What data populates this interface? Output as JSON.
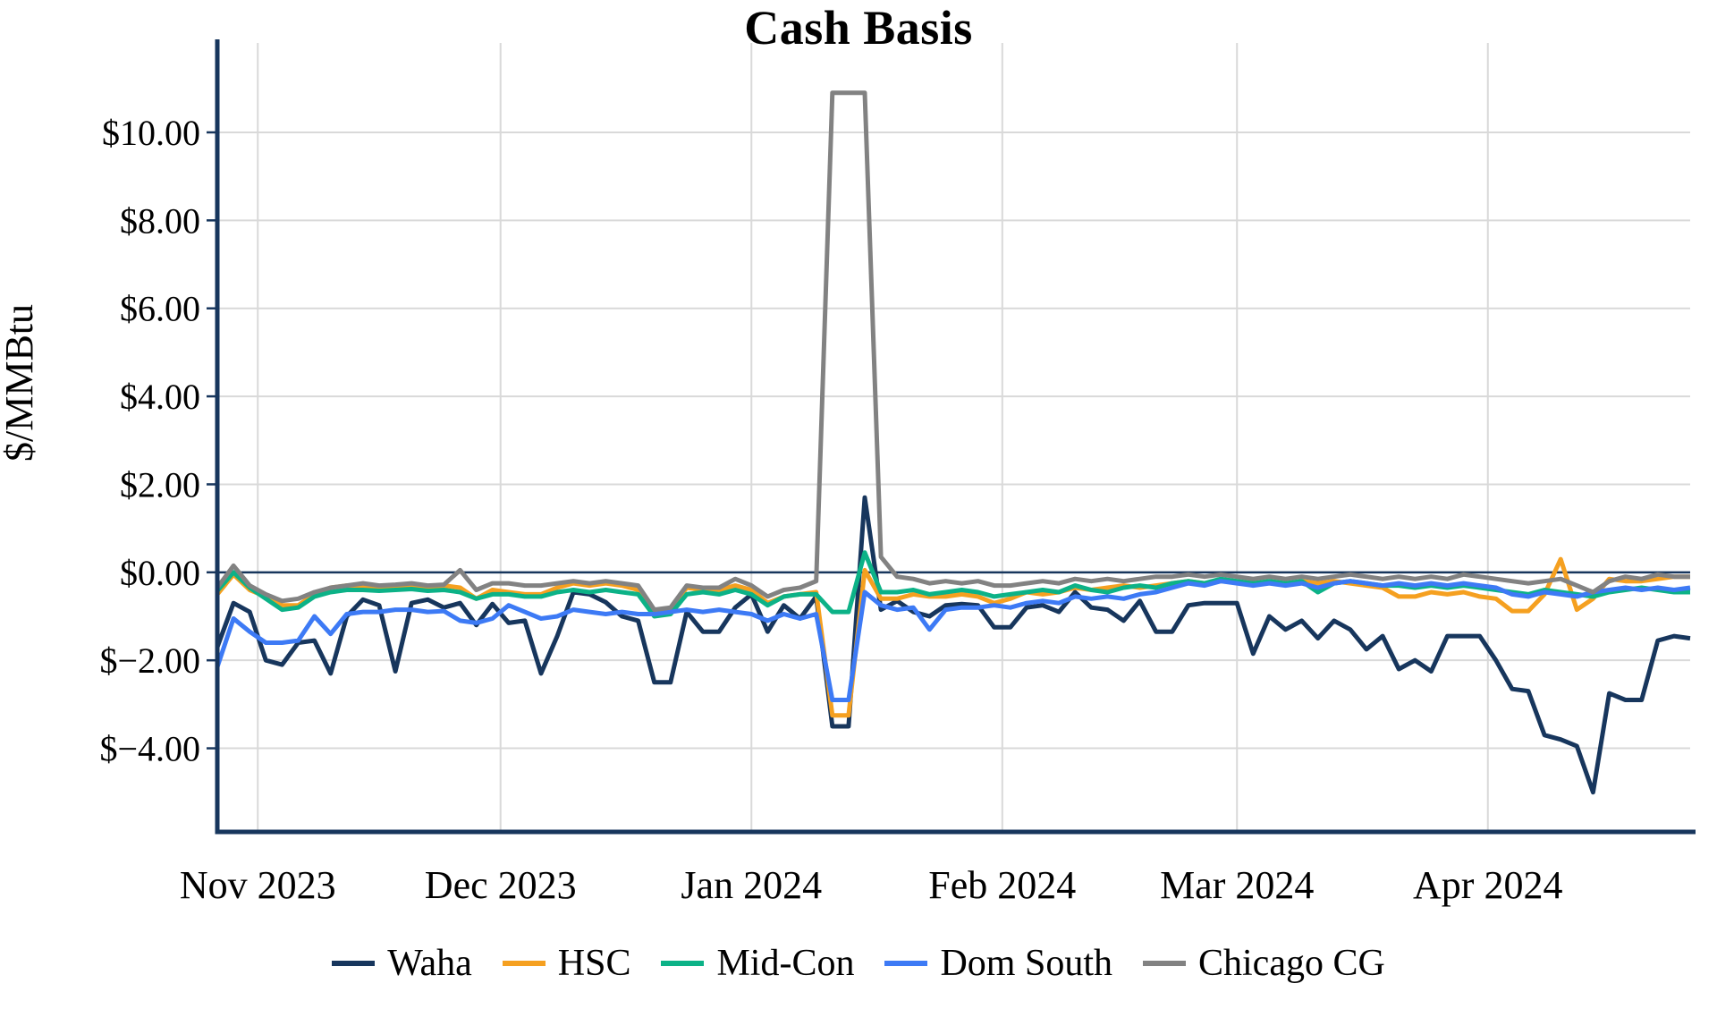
{
  "chart_data": {
    "type": "line",
    "title": "Cash Basis",
    "ylabel": "$/MMBtu",
    "legend_position": "bottom",
    "grid": true,
    "background": "#ffffff",
    "ylim": [
      -5.9,
      11.85
    ],
    "x_unit": "day offset from first plotted date (2-day sampling of daily series)",
    "x": [
      0,
      2,
      4,
      6,
      8,
      10,
      12,
      14,
      16,
      18,
      20,
      22,
      24,
      26,
      28,
      30,
      32,
      34,
      36,
      38,
      40,
      42,
      44,
      46,
      48,
      50,
      52,
      54,
      56,
      58,
      60,
      62,
      64,
      66,
      68,
      70,
      72,
      74,
      76,
      78,
      80,
      82,
      84,
      86,
      88,
      90,
      92,
      94,
      96,
      98,
      100,
      102,
      104,
      106,
      108,
      110,
      112,
      114,
      116,
      118,
      120,
      122,
      124,
      126,
      128,
      130,
      132,
      134,
      136,
      138,
      140,
      142,
      144,
      146,
      148,
      150,
      152,
      154,
      156,
      158,
      160,
      162,
      164,
      166,
      168,
      170,
      172,
      174,
      176,
      178,
      180,
      182
    ],
    "x_ticks": [
      {
        "day": 5,
        "label": "Nov 2023"
      },
      {
        "day": 35,
        "label": "Dec 2023"
      },
      {
        "day": 66,
        "label": "Jan 2024"
      },
      {
        "day": 97,
        "label": "Feb 2024"
      },
      {
        "day": 126,
        "label": "Mar 2024"
      },
      {
        "day": 157,
        "label": "Apr 2024"
      }
    ],
    "y_ticks": [
      {
        "value": 10,
        "label": "$10.00"
      },
      {
        "value": 8,
        "label": "$8.00"
      },
      {
        "value": 6,
        "label": "$6.00"
      },
      {
        "value": 4,
        "label": "$4.00"
      },
      {
        "value": 2,
        "label": "$2.00"
      },
      {
        "value": 0,
        "label": "$0.00"
      },
      {
        "value": -2,
        "label": "$−2.00"
      },
      {
        "value": -4,
        "label": "$−4.00"
      }
    ],
    "series": [
      {
        "name": "Waha",
        "color": "#17365d",
        "values": [
          -1.7,
          -0.7,
          -0.9,
          -2.0,
          -2.1,
          -1.6,
          -1.55,
          -2.3,
          -1.0,
          -0.62,
          -0.75,
          -2.25,
          -0.7,
          -0.62,
          -0.8,
          -0.7,
          -1.2,
          -0.72,
          -1.15,
          -1.1,
          -2.3,
          -1.45,
          -0.45,
          -0.5,
          -0.68,
          -1.0,
          -1.1,
          -2.5,
          -2.5,
          -0.9,
          -1.35,
          -1.35,
          -0.8,
          -0.5,
          -1.35,
          -0.75,
          -1.05,
          -0.55,
          -3.5,
          -3.5,
          1.7,
          -0.85,
          -0.65,
          -0.9,
          -1.0,
          -0.75,
          -0.72,
          -0.75,
          -1.25,
          -1.25,
          -0.8,
          -0.75,
          -0.9,
          -0.45,
          -0.8,
          -0.85,
          -1.1,
          -0.65,
          -1.35,
          -1.35,
          -0.75,
          -0.7,
          -0.7,
          -0.7,
          -1.85,
          -1.0,
          -1.3,
          -1.1,
          -1.5,
          -1.1,
          -1.3,
          -1.75,
          -1.45,
          -2.2,
          -2.0,
          -2.25,
          -1.45,
          -1.45,
          -1.45,
          -2.0,
          -2.65,
          -2.7,
          -3.7,
          -3.8,
          -3.95,
          -5.0,
          -2.75,
          -2.9,
          -2.9,
          -1.55,
          -1.45,
          -1.5
        ]
      },
      {
        "name": "HSC",
        "color": "#f5a020",
        "values": [
          -0.5,
          -0.05,
          -0.4,
          -0.55,
          -0.75,
          -0.75,
          -0.5,
          -0.35,
          -0.3,
          -0.3,
          -0.35,
          -0.3,
          -0.3,
          -0.35,
          -0.3,
          -0.35,
          -0.6,
          -0.4,
          -0.45,
          -0.5,
          -0.5,
          -0.35,
          -0.25,
          -0.3,
          -0.25,
          -0.3,
          -0.4,
          -0.9,
          -0.85,
          -0.35,
          -0.4,
          -0.4,
          -0.3,
          -0.4,
          -0.7,
          -0.55,
          -0.5,
          -0.45,
          -3.25,
          -3.25,
          0.05,
          -0.6,
          -0.6,
          -0.5,
          -0.55,
          -0.55,
          -0.5,
          -0.55,
          -0.7,
          -0.6,
          -0.45,
          -0.5,
          -0.45,
          -0.35,
          -0.4,
          -0.35,
          -0.3,
          -0.35,
          -0.3,
          -0.25,
          -0.2,
          -0.25,
          -0.2,
          -0.2,
          -0.25,
          -0.2,
          -0.25,
          -0.2,
          -0.25,
          -0.2,
          -0.25,
          -0.3,
          -0.35,
          -0.55,
          -0.55,
          -0.45,
          -0.5,
          -0.45,
          -0.55,
          -0.6,
          -0.88,
          -0.88,
          -0.5,
          0.3,
          -0.85,
          -0.6,
          -0.15,
          -0.2,
          -0.2,
          -0.15,
          -0.1,
          -0.1
        ]
      },
      {
        "name": "Mid-Con",
        "color": "#0cb287",
        "values": [
          -0.42,
          0.0,
          -0.35,
          -0.6,
          -0.85,
          -0.8,
          -0.55,
          -0.45,
          -0.4,
          -0.4,
          -0.42,
          -0.4,
          -0.38,
          -0.42,
          -0.4,
          -0.45,
          -0.6,
          -0.5,
          -0.5,
          -0.55,
          -0.55,
          -0.45,
          -0.4,
          -0.45,
          -0.4,
          -0.45,
          -0.5,
          -1.0,
          -0.95,
          -0.5,
          -0.45,
          -0.5,
          -0.4,
          -0.5,
          -0.75,
          -0.55,
          -0.5,
          -0.5,
          -0.9,
          -0.9,
          0.45,
          -0.45,
          -0.45,
          -0.4,
          -0.5,
          -0.45,
          -0.4,
          -0.45,
          -0.55,
          -0.5,
          -0.45,
          -0.4,
          -0.45,
          -0.3,
          -0.4,
          -0.45,
          -0.35,
          -0.3,
          -0.35,
          -0.25,
          -0.2,
          -0.25,
          -0.15,
          -0.2,
          -0.25,
          -0.2,
          -0.25,
          -0.2,
          -0.45,
          -0.25,
          -0.2,
          -0.25,
          -0.3,
          -0.3,
          -0.35,
          -0.3,
          -0.35,
          -0.3,
          -0.35,
          -0.4,
          -0.45,
          -0.5,
          -0.4,
          -0.45,
          -0.5,
          -0.55,
          -0.45,
          -0.4,
          -0.35,
          -0.4,
          -0.45,
          -0.45
        ]
      },
      {
        "name": "Dom South",
        "color": "#3d7af5",
        "values": [
          -2.15,
          -1.05,
          -1.35,
          -1.6,
          -1.6,
          -1.55,
          -1.0,
          -1.4,
          -0.95,
          -0.9,
          -0.9,
          -0.85,
          -0.85,
          -0.9,
          -0.88,
          -1.1,
          -1.15,
          -1.05,
          -0.75,
          -0.9,
          -1.05,
          -1.0,
          -0.85,
          -0.9,
          -0.95,
          -0.9,
          -0.95,
          -0.95,
          -0.9,
          -0.85,
          -0.9,
          -0.85,
          -0.9,
          -0.95,
          -1.1,
          -0.95,
          -1.05,
          -0.95,
          -2.9,
          -2.9,
          -0.45,
          -0.75,
          -0.85,
          -0.8,
          -1.3,
          -0.85,
          -0.8,
          -0.8,
          -0.75,
          -0.8,
          -0.7,
          -0.65,
          -0.7,
          -0.55,
          -0.6,
          -0.55,
          -0.6,
          -0.5,
          -0.45,
          -0.35,
          -0.25,
          -0.3,
          -0.2,
          -0.25,
          -0.3,
          -0.25,
          -0.3,
          -0.25,
          -0.35,
          -0.25,
          -0.2,
          -0.25,
          -0.3,
          -0.25,
          -0.3,
          -0.25,
          -0.3,
          -0.25,
          -0.3,
          -0.35,
          -0.5,
          -0.55,
          -0.45,
          -0.5,
          -0.55,
          -0.45,
          -0.4,
          -0.35,
          -0.4,
          -0.35,
          -0.4,
          -0.35
        ]
      },
      {
        "name": "Chicago CG",
        "color": "#828282",
        "values": [
          -0.35,
          0.15,
          -0.3,
          -0.5,
          -0.65,
          -0.6,
          -0.45,
          -0.35,
          -0.3,
          -0.25,
          -0.3,
          -0.28,
          -0.25,
          -0.3,
          -0.28,
          0.05,
          -0.4,
          -0.25,
          -0.25,
          -0.3,
          -0.3,
          -0.25,
          -0.2,
          -0.25,
          -0.2,
          -0.25,
          -0.3,
          -0.85,
          -0.8,
          -0.3,
          -0.35,
          -0.35,
          -0.15,
          -0.3,
          -0.55,
          -0.4,
          -0.35,
          -0.2,
          10.9,
          10.9,
          10.9,
          0.35,
          -0.1,
          -0.15,
          -0.25,
          -0.2,
          -0.25,
          -0.2,
          -0.3,
          -0.3,
          -0.25,
          -0.2,
          -0.25,
          -0.15,
          -0.2,
          -0.15,
          -0.2,
          -0.15,
          -0.1,
          -0.1,
          -0.05,
          -0.1,
          -0.05,
          -0.1,
          -0.15,
          -0.1,
          -0.15,
          -0.1,
          -0.15,
          -0.1,
          -0.05,
          -0.1,
          -0.15,
          -0.1,
          -0.15,
          -0.1,
          -0.15,
          -0.05,
          -0.1,
          -0.15,
          -0.2,
          -0.25,
          -0.2,
          -0.15,
          -0.3,
          -0.45,
          -0.2,
          -0.1,
          -0.15,
          -0.05,
          -0.1,
          -0.1
        ]
      }
    ],
    "colors": {
      "axis": "#17365d",
      "zero_line": "#17365d",
      "gridline": "#d9d9d9",
      "text": "#000000"
    }
  }
}
